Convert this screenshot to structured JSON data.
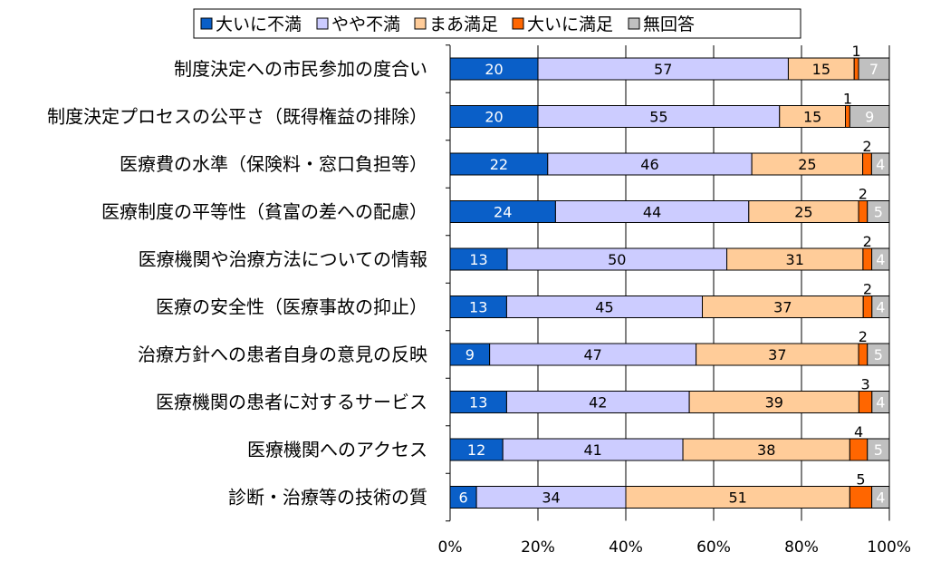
{
  "chart_data": {
    "type": "bar",
    "orientation": "horizontal",
    "stacked": true,
    "normalized_percent": true,
    "legend_position": "top",
    "grid": "vertical gridlines at x ticks",
    "xlim": [
      0,
      100
    ],
    "x_ticks": [
      "0%",
      "20%",
      "40%",
      "60%",
      "80%",
      "100%"
    ],
    "categories": [
      "制度決定への市民参加の度合い",
      "制度決定プロセスの公平さ（既得権益の排除）",
      "医療費の水準（保険料・窓口負担等）",
      "医療制度の平等性（貧富の差への配慮）",
      "医療機関や治療方法についての情報",
      "医療の安全性（医療事故の抑止）",
      "治療方針への患者自身の意見の反映",
      "医療機関の患者に対するサービス",
      "医療機関へのアクセス",
      "診断・治療等の技術の質"
    ],
    "series": [
      {
        "name": "大いに不満",
        "color": "#0a5fc8",
        "label_color": "#ffffff",
        "values": [
          20,
          20,
          22,
          24,
          13,
          13,
          9,
          13,
          12,
          6
        ]
      },
      {
        "name": "やや不満",
        "color": "#ccccff",
        "label_color": "#000000",
        "values": [
          57,
          55,
          46,
          44,
          50,
          45,
          47,
          42,
          41,
          34
        ]
      },
      {
        "name": "まあ満足",
        "color": "#ffcc99",
        "label_color": "#000000",
        "values": [
          15,
          15,
          25,
          25,
          31,
          37,
          37,
          39,
          38,
          51
        ]
      },
      {
        "name": "大いに満足",
        "color": "#ff6600",
        "label_color": "#000000",
        "values": [
          1,
          1,
          2,
          2,
          2,
          2,
          2,
          3,
          4,
          5
        ]
      },
      {
        "name": "無回答",
        "color": "#c0c0c0",
        "label_color": "#ffffff",
        "values": [
          7,
          9,
          4,
          5,
          4,
          4,
          5,
          4,
          5,
          4
        ]
      }
    ]
  }
}
